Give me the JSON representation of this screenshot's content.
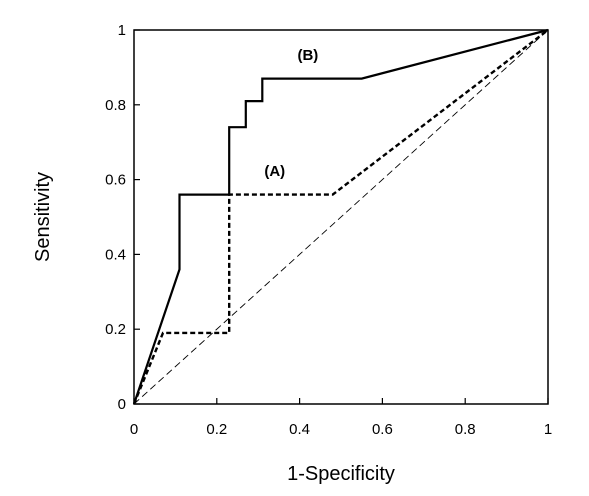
{
  "chart_data": {
    "type": "line",
    "title": "",
    "xlabel": "1-Specificity",
    "ylabel": "Sensitivity",
    "xlim": [
      0,
      1
    ],
    "ylim": [
      0,
      1
    ],
    "xticks": [
      0,
      0.2,
      0.4,
      0.6,
      0.8,
      1
    ],
    "yticks": [
      0,
      0.2,
      0.4,
      0.6,
      0.8,
      1
    ],
    "xtick_labels": [
      "0",
      "0.2",
      "0.4",
      "0.6",
      "0.8",
      "1"
    ],
    "ytick_labels": [
      "0",
      "0.2",
      "0.4",
      "0.6",
      "0.8",
      "1"
    ],
    "grid": false,
    "legend": "none",
    "series": [
      {
        "label": "(B)",
        "style": "solid",
        "color": "#000000",
        "x": [
          0,
          0.11,
          0.11,
          0.23,
          0.23,
          0.27,
          0.27,
          0.31,
          0.31,
          0.55,
          1
        ],
        "y": [
          0,
          0.36,
          0.56,
          0.56,
          0.74,
          0.74,
          0.81,
          0.81,
          0.87,
          0.87,
          1
        ]
      },
      {
        "label": "(A)",
        "style": "dashed",
        "color": "#000000",
        "x": [
          0,
          0.07,
          0.23,
          0.23,
          0.48,
          1
        ],
        "y": [
          0,
          0.19,
          0.19,
          0.56,
          0.56,
          1
        ]
      },
      {
        "style": "thin-dashed",
        "color": "#000000",
        "x": [
          0,
          1
        ],
        "y": [
          0,
          1
        ]
      }
    ],
    "annotations": [
      {
        "text": "(B)",
        "x": 0.42,
        "y": 0.92
      },
      {
        "text": "(A)",
        "x": 0.34,
        "y": 0.61
      }
    ]
  }
}
